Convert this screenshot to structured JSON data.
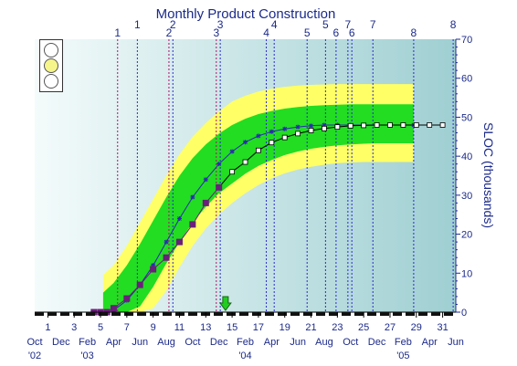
{
  "chart_data": {
    "type": "line",
    "title": "Monthly Product Construction",
    "ylabel": "SLOC (thousands)",
    "ylim": [
      0,
      70
    ],
    "yticks": [
      0,
      10,
      20,
      30,
      40,
      50,
      60,
      70
    ],
    "xlim": [
      0,
      32
    ],
    "x_month_ticks": [
      1,
      3,
      5,
      7,
      9,
      11,
      13,
      15,
      17,
      19,
      21,
      23,
      25,
      27,
      29,
      31
    ],
    "x_month_labels": [
      "1",
      "3",
      "5",
      "7",
      "9",
      "11",
      "13",
      "15",
      "17",
      "19",
      "21",
      "23",
      "25",
      "27",
      "29",
      "31"
    ],
    "x_calendar_ticks": [
      0,
      2,
      4,
      6,
      8,
      10,
      12,
      14,
      16,
      18,
      20,
      22,
      24,
      26,
      28,
      30,
      32
    ],
    "x_calendar_labels": [
      "Oct",
      "Dec",
      "Feb",
      "Apr",
      "Jun",
      "Aug",
      "Oct",
      "Dec",
      "Feb",
      "Apr",
      "Jun",
      "Aug",
      "Oct",
      "Dec",
      "Feb",
      "Apr",
      "Jun"
    ],
    "x_year_labels": [
      {
        "x": 0,
        "label": "'02"
      },
      {
        "x": 4,
        "label": "'03"
      },
      {
        "x": 16,
        "label": "'04"
      },
      {
        "x": 28,
        "label": "'05"
      }
    ],
    "milestones_top": [
      {
        "x": 6.3,
        "label": "1"
      },
      {
        "x": 7.8,
        "label": "1"
      },
      {
        "x": 10.2,
        "label": "2"
      },
      {
        "x": 10.5,
        "label": "2"
      },
      {
        "x": 13.8,
        "label": "3"
      },
      {
        "x": 14.1,
        "label": "3"
      },
      {
        "x": 17.6,
        "label": "4"
      },
      {
        "x": 18.2,
        "label": "4"
      },
      {
        "x": 20.7,
        "label": "5"
      },
      {
        "x": 22.1,
        "label": "5"
      },
      {
        "x": 22.9,
        "label": "6"
      },
      {
        "x": 23.8,
        "label": "7"
      },
      {
        "x": 24.1,
        "label": "6"
      },
      {
        "x": 25.7,
        "label": "7"
      },
      {
        "x": 28.8,
        "label": "8"
      },
      {
        "x": 31.8,
        "label": "8"
      }
    ],
    "status_marker_x": 14.5,
    "bands": {
      "x": [
        5.2,
        6,
        7,
        8,
        9,
        10,
        11,
        12,
        13,
        14,
        15,
        16,
        17,
        18,
        19,
        20,
        21,
        22,
        23,
        24,
        25,
        26,
        27,
        28,
        28.8
      ],
      "yellow_upper": [
        9.5,
        12,
        17,
        23,
        29,
        35,
        40.5,
        45,
        48.5,
        51.5,
        54,
        55.5,
        56.6,
        57.3,
        57.8,
        58.1,
        58.3,
        58.4,
        58.5,
        58.5,
        58.5,
        58.5,
        58.5,
        58.5,
        58.5
      ],
      "green_upper": [
        5,
        7.5,
        12,
        17.5,
        23.5,
        29.5,
        35,
        39.5,
        43,
        45.8,
        48,
        49.6,
        50.8,
        51.6,
        52.2,
        52.6,
        52.9,
        53.1,
        53.2,
        53.3,
        53.3,
        53.3,
        53.3,
        53.3,
        53.3
      ],
      "green_lower": [
        0,
        0,
        0,
        1.5,
        6.5,
        12.5,
        18,
        23,
        27,
        30.5,
        33,
        35.5,
        37.5,
        39,
        40.3,
        41.2,
        41.9,
        42.4,
        42.8,
        43,
        43.2,
        43.3,
        43.3,
        43.3,
        43.3
      ],
      "yellow_lower": [
        0,
        0,
        0,
        0,
        1,
        5.5,
        11.5,
        17,
        21.5,
        25,
        28,
        30.5,
        32.6,
        34.3,
        35.6,
        36.6,
        37.3,
        37.8,
        38.2,
        38.4,
        38.5,
        38.5,
        38.5,
        38.5,
        38.5
      ]
    },
    "series": [
      {
        "marker": "star",
        "color": "#2a2ab0",
        "x": [
          6,
          7,
          8,
          9,
          10,
          11,
          12,
          13,
          14,
          15,
          16,
          17,
          18,
          19,
          20,
          21,
          22,
          23,
          24,
          25,
          26,
          27,
          28,
          28.8
        ],
        "values": [
          0.5,
          3,
          7,
          12,
          18,
          24,
          29.5,
          34,
          38,
          41.2,
          43.6,
          45.2,
          46.3,
          47,
          47.5,
          47.8,
          48,
          48,
          48,
          48,
          48,
          48,
          48,
          48
        ]
      },
      {
        "marker": "open-square",
        "color": "#000000",
        "x": [
          14,
          15,
          16,
          17,
          18,
          19,
          20,
          21,
          22,
          23,
          24,
          25,
          26,
          27,
          28,
          29,
          30,
          31
        ],
        "values": [
          32,
          36,
          38.5,
          41.5,
          43.5,
          44.8,
          45.8,
          46.6,
          47.1,
          47.5,
          47.8,
          47.9,
          48,
          48,
          48,
          48,
          48,
          48
        ]
      },
      {
        "marker": "filled-square",
        "color": "#6a1f7a",
        "x": [
          4.5,
          5,
          5.5,
          6,
          7,
          8,
          9,
          10,
          11,
          12,
          13,
          14
        ],
        "values": [
          0,
          0,
          0,
          1,
          3.5,
          7,
          11,
          14,
          18,
          22.5,
          28,
          32
        ]
      }
    ]
  },
  "traffic_light": {
    "red": "#ffffff",
    "yellow": "#f5f58c",
    "green": "#ffffff"
  },
  "colors": {
    "yellow_band": "#ffff66",
    "green_band": "#22dd22",
    "milestone_red": "#b0106a",
    "milestone_blue": "#2a2ad0",
    "axis": "#1b2a8a"
  }
}
